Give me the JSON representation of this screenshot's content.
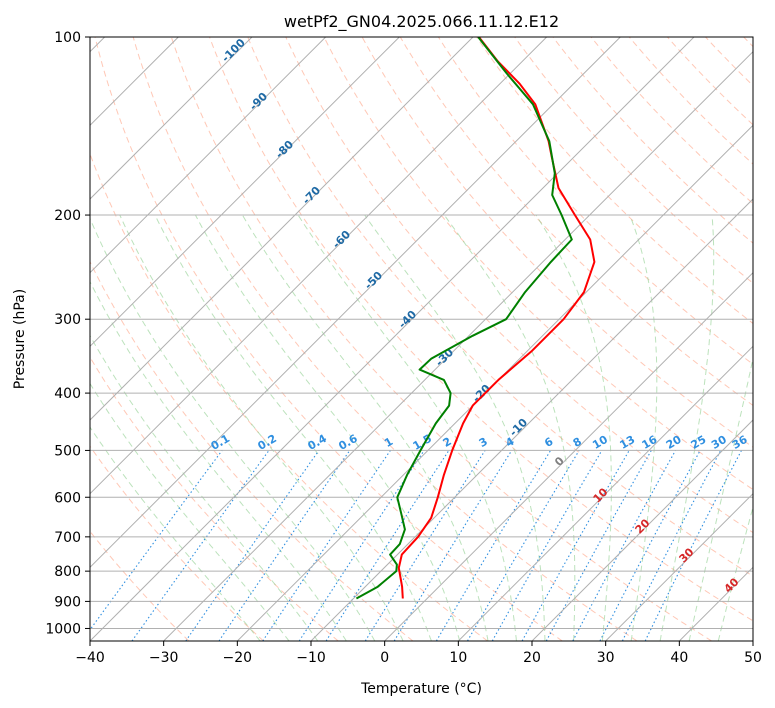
{
  "chart_data": {
    "type": "line",
    "title": "wetPf2_GN04.2025.066.11.12.E12",
    "xlabel": "Temperature (°C)",
    "ylabel": "Pressure (hPa)",
    "xlim": [
      -40,
      50
    ],
    "ylim": [
      1050,
      100
    ],
    "y_scale": "log",
    "x_ticks": [
      -40,
      -30,
      -20,
      -10,
      0,
      10,
      20,
      30,
      40,
      50
    ],
    "x_tick_labels": [
      "−40",
      "−30",
      "−20",
      "−10",
      "0",
      "10",
      "20",
      "30",
      "40",
      "50"
    ],
    "y_ticks": [
      1000,
      900,
      800,
      700,
      600,
      500,
      400,
      300,
      200,
      100
    ],
    "y_tick_labels": [
      "1000",
      "900",
      "800",
      "700",
      "600",
      "500",
      "400",
      "300",
      "200",
      "100"
    ],
    "grid": true,
    "skew_deg": 45,
    "colors": {
      "temperature": "#ff0000",
      "dewpoint": "#008000",
      "isotherm": "#b0b0b0",
      "dry_adiabat": "#ff9b7a",
      "moist_adiabat": "#8fcf8f",
      "mixing_ratio": "#2f8fe0",
      "isotherm_label": "#1f6aa5",
      "lifted_label": "#d62728"
    },
    "series": [
      {
        "key": "temperature",
        "values": [
          {
            "p": 890,
            "t": -3.3
          },
          {
            "p": 850,
            "t": -5.0
          },
          {
            "p": 790,
            "t": -8.0
          },
          {
            "p": 750,
            "t": -9.4
          },
          {
            "p": 700,
            "t": -9.6
          },
          {
            "p": 650,
            "t": -10.4
          },
          {
            "p": 600,
            "t": -12.3
          },
          {
            "p": 550,
            "t": -14.5
          },
          {
            "p": 500,
            "t": -16.7
          },
          {
            "p": 450,
            "t": -18.9
          },
          {
            "p": 420,
            "t": -20.0
          },
          {
            "p": 380,
            "t": -20.0
          },
          {
            "p": 340,
            "t": -19.4
          },
          {
            "p": 300,
            "t": -19.4
          },
          {
            "p": 270,
            "t": -20.3
          },
          {
            "p": 240,
            "t": -23.0
          },
          {
            "p": 220,
            "t": -26.6
          },
          {
            "p": 200,
            "t": -32.0
          },
          {
            "p": 180,
            "t": -37.9
          },
          {
            "p": 160,
            "t": -42.9
          },
          {
            "p": 150,
            "t": -45.6
          },
          {
            "p": 130,
            "t": -52.4
          },
          {
            "p": 120,
            "t": -57.3
          },
          {
            "p": 110,
            "t": -63.3
          },
          {
            "p": 100,
            "t": -69.2
          }
        ]
      },
      {
        "key": "dewpoint",
        "values": [
          {
            "p": 890,
            "t": -9.6
          },
          {
            "p": 850,
            "t": -8.3
          },
          {
            "p": 800,
            "t": -7.9
          },
          {
            "p": 780,
            "t": -8.7
          },
          {
            "p": 750,
            "t": -11.0
          },
          {
            "p": 720,
            "t": -11.1
          },
          {
            "p": 680,
            "t": -12.4
          },
          {
            "p": 640,
            "t": -15.0
          },
          {
            "p": 600,
            "t": -17.8
          },
          {
            "p": 550,
            "t": -19.5
          },
          {
            "p": 500,
            "t": -21.0
          },
          {
            "p": 450,
            "t": -22.6
          },
          {
            "p": 420,
            "t": -23.2
          },
          {
            "p": 400,
            "t": -24.7
          },
          {
            "p": 380,
            "t": -27.4
          },
          {
            "p": 365,
            "t": -32.1
          },
          {
            "p": 350,
            "t": -32.0
          },
          {
            "p": 320,
            "t": -29.5
          },
          {
            "p": 300,
            "t": -27.2
          },
          {
            "p": 270,
            "t": -28.3
          },
          {
            "p": 240,
            "t": -28.9
          },
          {
            "p": 220,
            "t": -29.1
          },
          {
            "p": 200,
            "t": -33.8
          },
          {
            "p": 185,
            "t": -37.8
          },
          {
            "p": 170,
            "t": -40.4
          },
          {
            "p": 150,
            "t": -45.5
          },
          {
            "p": 130,
            "t": -52.7
          },
          {
            "p": 115,
            "t": -60.6
          },
          {
            "p": 100,
            "t": -69.3
          }
        ]
      }
    ],
    "isotherm_labels": [
      "-100",
      "-90",
      "-80",
      "-70",
      "-60",
      "-50",
      "-40",
      "-30",
      "-20",
      "-10",
      "0",
      "10",
      "20",
      "30",
      "40"
    ],
    "mixing_ratio_labels": [
      "0.1",
      "0.2",
      "0.4",
      "0.6",
      "1",
      "1.5",
      "2",
      "3",
      "4",
      "6",
      "8",
      "10",
      "13",
      "16",
      "20",
      "25",
      "30",
      "36"
    ],
    "mixing_ratio_values": [
      0.1,
      0.2,
      0.4,
      0.6,
      1,
      1.5,
      2,
      3,
      4,
      6,
      8,
      10,
      13,
      16,
      20,
      25,
      30,
      36
    ]
  }
}
